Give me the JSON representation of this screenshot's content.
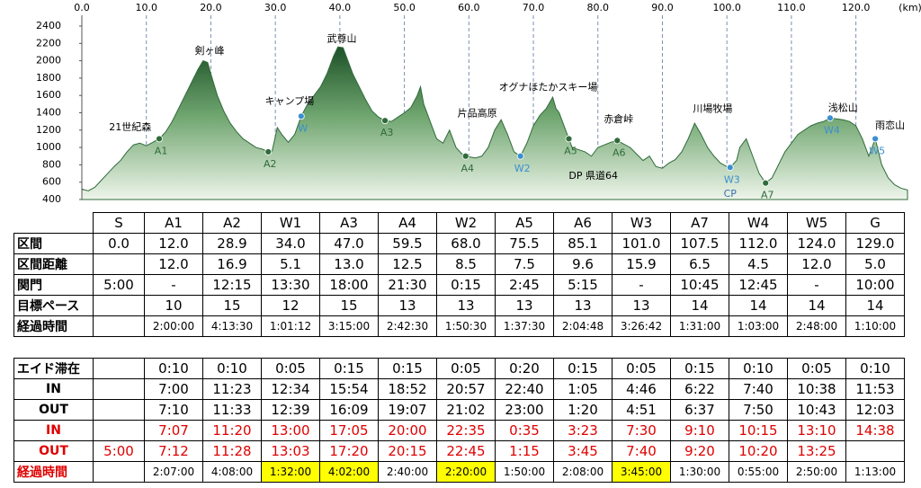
{
  "chart_data": {
    "type": "area",
    "xlabel": "(km)",
    "x": [
      0,
      1,
      2,
      3,
      4,
      5,
      6,
      7,
      8,
      9,
      10,
      11,
      12,
      13,
      14,
      15,
      16,
      17,
      18,
      18.8,
      19.5,
      20,
      21,
      22,
      23,
      24,
      25,
      26,
      27,
      28,
      28.9,
      29.5,
      30.3,
      31,
      32,
      33,
      34,
      35,
      36,
      37,
      38,
      39,
      39.7,
      40.5,
      41,
      42,
      43,
      44,
      45,
      46,
      47,
      48,
      49,
      50,
      51,
      52,
      52.5,
      53,
      54,
      55,
      56,
      57,
      58,
      59,
      59.5,
      61,
      62,
      63,
      64,
      65,
      66,
      67,
      68,
      69,
      70,
      71,
      72,
      73,
      73.5,
      74,
      75,
      75.5,
      76,
      78,
      79,
      80,
      82,
      83,
      85,
      87,
      88,
      89,
      90,
      91,
      92,
      93,
      94,
      95,
      96,
      97,
      98,
      99,
      100,
      100.5,
      101.5,
      102,
      103,
      104,
      105,
      106,
      107,
      108,
      109,
      110,
      111,
      112,
      113,
      114,
      115,
      116,
      117,
      118,
      119,
      120,
      121,
      122,
      123,
      124,
      125,
      126,
      127,
      128
    ],
    "values": [
      520,
      500,
      540,
      620,
      700,
      780,
      850,
      950,
      1030,
      1050,
      1020,
      1060,
      1100,
      1180,
      1300,
      1450,
      1600,
      1750,
      1900,
      2000,
      1980,
      1850,
      1600,
      1420,
      1280,
      1180,
      1100,
      1050,
      1000,
      980,
      950,
      960,
      1230,
      1150,
      1060,
      1150,
      1360,
      1500,
      1600,
      1700,
      1850,
      2050,
      2160,
      2150,
      2050,
      1850,
      1700,
      1550,
      1420,
      1350,
      1310,
      1300,
      1350,
      1400,
      1460,
      1600,
      1700,
      1500,
      1300,
      1100,
      1050,
      1200,
      1000,
      920,
      900,
      880,
      900,
      1000,
      1200,
      1320,
      1150,
      950,
      900,
      1050,
      1250,
      1370,
      1450,
      1580,
      1450,
      1400,
      1200,
      1100,
      1000,
      950,
      900,
      1000,
      1060,
      1080,
      1000,
      850,
      900,
      780,
      760,
      820,
      860,
      950,
      1100,
      1280,
      1150,
      1000,
      900,
      820,
      780,
      770,
      850,
      1000,
      1100,
      900,
      700,
      590,
      650,
      800,
      950,
      1050,
      1150,
      1200,
      1250,
      1280,
      1300,
      1340,
      1330,
      1320,
      1300,
      1250,
      1100,
      900,
      1100,
      800,
      650,
      570,
      530,
      510
    ],
    "color": "#2f6b3a",
    "xlim": [
      0,
      128
    ],
    "ylim": [
      400,
      2400
    ],
    "xticks": [
      {
        "value": 0,
        "label": "0.0"
      },
      {
        "value": 10,
        "label": "10.0"
      },
      {
        "value": 20,
        "label": "20.0"
      },
      {
        "value": 30,
        "label": "30.0"
      },
      {
        "value": 40,
        "label": "40.0"
      },
      {
        "value": 50,
        "label": "50.0"
      },
      {
        "value": 60,
        "label": "60.0"
      },
      {
        "value": 70,
        "label": "70.0"
      },
      {
        "value": 80,
        "label": "80.0"
      },
      {
        "value": 90,
        "label": "90.0"
      },
      {
        "value": 100,
        "label": "100.0"
      },
      {
        "value": 110,
        "label": "110.0"
      },
      {
        "value": 120,
        "label": "120.0"
      }
    ],
    "yticks": [
      400,
      600,
      800,
      1000,
      1200,
      1400,
      1600,
      1800,
      2000,
      2200,
      2400
    ],
    "grid": "x",
    "markers": [
      {
        "label": "A1",
        "x": 12,
        "y": 1100,
        "color": "#2f6b3a"
      },
      {
        "label": "A2",
        "x": 28.9,
        "y": 950,
        "color": "#2f6b3a"
      },
      {
        "label": "W",
        "x": 34,
        "y": 1360,
        "color": "#3a8fd0"
      },
      {
        "label": "A3",
        "x": 47,
        "y": 1310,
        "color": "#2f6b3a"
      },
      {
        "label": "A4",
        "x": 59.5,
        "y": 900,
        "color": "#2f6b3a"
      },
      {
        "label": "W2",
        "x": 68,
        "y": 900,
        "color": "#3a8fd0"
      },
      {
        "label": "A5",
        "x": 75.5,
        "y": 1100,
        "color": "#2f6b3a"
      },
      {
        "label": "A6",
        "x": 83,
        "y": 1080,
        "color": "#2f6b3a"
      },
      {
        "label": "W3",
        "x": 100.5,
        "y": 770,
        "color": "#3a8fd0"
      },
      {
        "label": "A7",
        "x": 106,
        "y": 590,
        "color": "#2f6b3a"
      },
      {
        "label": "W4",
        "x": 116,
        "y": 1340,
        "color": "#3a8fd0"
      },
      {
        "label": "W5",
        "x": 123,
        "y": 1100,
        "color": "#3a8fd0"
      }
    ],
    "annotations": [
      {
        "text": "21世紀森",
        "x": 7.5,
        "y": 1230,
        "color": "#000000"
      },
      {
        "text": "剣ヶ峰",
        "x": 19.8,
        "y": 2110,
        "color": "#000000"
      },
      {
        "text": "キャンプ場",
        "x": 32.2,
        "y": 1530,
        "color": "#000000"
      },
      {
        "text": "武尊山",
        "x": 40.3,
        "y": 2250,
        "color": "#000000"
      },
      {
        "text": "片品高原",
        "x": 61.3,
        "y": 1390,
        "color": "#000000"
      },
      {
        "text": "オグナほたかスキー場",
        "x": 72.3,
        "y": 1690,
        "color": "#000000"
      },
      {
        "text": "赤倉峠",
        "x": 83.2,
        "y": 1320,
        "color": "#000000"
      },
      {
        "text": "DP 県道64",
        "x": 79.3,
        "y": 670,
        "color": "#000000"
      },
      {
        "text": "川場牧場",
        "x": 97.8,
        "y": 1440,
        "color": "#000000"
      },
      {
        "text": "浅松山",
        "x": 118,
        "y": 1450,
        "color": "#000000"
      },
      {
        "text": "雨恋山",
        "x": 125.3,
        "y": 1250,
        "color": "#000000"
      },
      {
        "text": "CP",
        "x": 100.5,
        "y": 460,
        "color": "#3a6fb0"
      }
    ]
  },
  "table1": {
    "header": [
      null,
      "S",
      "A1",
      "A2",
      "W1",
      "A3",
      "A4",
      "W2",
      "A5",
      "A6",
      "W3",
      "A7",
      "W4",
      "W5",
      "G"
    ],
    "rows": [
      [
        "区間",
        "0.0",
        "12.0",
        "28.9",
        "34.0",
        "47.0",
        "59.5",
        "68.0",
        "75.5",
        "85.1",
        "101.0",
        "107.5",
        "112.0",
        "124.0",
        "129.0"
      ],
      [
        "区間距離",
        null,
        "12.0",
        "16.9",
        "5.1",
        "13.0",
        "12.5",
        "8.5",
        "7.5",
        "9.6",
        "15.9",
        "6.5",
        "4.5",
        "12.0",
        "5.0"
      ],
      [
        "関門",
        "5:00",
        "-",
        "12:15",
        "13:30",
        "18:00",
        "21:30",
        "0:15",
        "2:45",
        "5:15",
        "-",
        "10:45",
        "12:45",
        "-",
        "10:00"
      ],
      [
        "目標ペース",
        null,
        "10",
        "15",
        "12",
        "15",
        "13",
        "13",
        "13",
        "13",
        "13",
        "14",
        "14",
        "14",
        "14"
      ],
      [
        "経過時間",
        null,
        "2:00:00",
        "4:13:30",
        "1:01:12",
        "3:15:00",
        "2:42:30",
        "1:50:30",
        "1:37:30",
        "2:04:48",
        "3:26:42",
        "1:31:00",
        "1:03:00",
        "2:48:00",
        "1:10:00"
      ]
    ]
  },
  "table2": {
    "rows": [
      [
        "エイド滞在",
        null,
        "0:10",
        "0:10",
        "0:05",
        "0:15",
        "0:15",
        "0:05",
        "0:20",
        "0:15",
        "0:05",
        "0:15",
        "0:10",
        "0:05",
        "0:10"
      ],
      [
        "IN",
        null,
        "7:00",
        "11:23",
        "12:34",
        "15:54",
        "18:52",
        "20:57",
        "22:40",
        "1:05",
        "4:46",
        "6:22",
        "7:40",
        "10:38",
        "11:53"
      ],
      [
        "OUT",
        null,
        "7:10",
        "11:33",
        "12:39",
        "16:09",
        "19:07",
        "21:02",
        "23:00",
        "1:20",
        "4:51",
        "6:37",
        "7:50",
        "10:43",
        "12:03"
      ],
      [
        "IN",
        null,
        "7:07",
        "11:20",
        "13:00",
        "17:05",
        "20:00",
        "22:35",
        "0:35",
        "3:23",
        "7:30",
        "9:10",
        "10:15",
        "13:10",
        "14:38"
      ],
      [
        "OUT",
        "5:00",
        "7:12",
        "11:28",
        "13:03",
        "17:20",
        "20:15",
        "22:45",
        "1:15",
        "3:45",
        "7:40",
        "9:20",
        "10:20",
        "13:25",
        null
      ],
      [
        "経過時間",
        null,
        "2:07:00",
        "4:08:00",
        "1:32:00",
        "4:02:00",
        "2:40:00",
        "2:20:00",
        "1:50:00",
        "2:08:00",
        "3:45:00",
        "1:30:00",
        "0:55:00",
        "2:50:00",
        "1:13:00"
      ]
    ]
  }
}
